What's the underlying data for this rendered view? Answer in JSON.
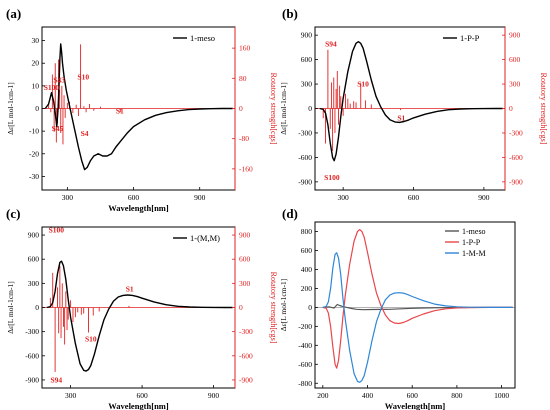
{
  "chart_data": [
    {
      "panel": "(a)",
      "type": "line",
      "legend": "1-meso",
      "legend_position": "top-right",
      "xlabel": "Wavelength[nm]",
      "ylabel": "Δε[L mol-1cm-1]",
      "y2label": "Rotatory strength[cgs]",
      "xlim": [
        185,
        1060
      ],
      "xticks": [
        300,
        600,
        900
      ],
      "ylim": [
        -36,
        36
      ],
      "yticks": [
        -30,
        -20,
        -10,
        0,
        10,
        20,
        30
      ],
      "y2lim": [
        -216,
        216
      ],
      "y2ticks": [
        -160,
        -80,
        0,
        80,
        160
      ],
      "series": [
        {
          "name": "1-meso",
          "color": "#000000",
          "x": [
            200,
            215,
            228,
            238,
            245,
            252,
            258,
            262,
            266,
            270,
            274,
            278,
            285,
            295,
            310,
            330,
            350,
            365,
            378,
            390,
            405,
            420,
            440,
            460,
            480,
            500,
            520,
            545,
            570,
            600,
            650,
            700,
            750,
            800,
            850,
            900,
            950,
            1000,
            1050
          ],
          "y": [
            0,
            2,
            7,
            3,
            -2,
            -8,
            0,
            10,
            22,
            28.5,
            25,
            20,
            14,
            8,
            1,
            -8,
            -17,
            -23,
            -27,
            -26,
            -23,
            -21,
            -20,
            -21,
            -21,
            -20,
            -17,
            -14,
            -11,
            -8,
            -5,
            -3,
            -1.8,
            -1,
            -0.5,
            -0.2,
            -0.1,
            0,
            0
          ]
        }
      ],
      "sticks": {
        "x": [
          215,
          225,
          232,
          240,
          245,
          250,
          255,
          260,
          265,
          270,
          275,
          280,
          285,
          290,
          300,
          310,
          325,
          340,
          350,
          360,
          375,
          385,
          400,
          420,
          450,
          540
        ],
        "y": [
          16,
          -10,
          90,
          -62,
          120,
          -90,
          -40,
          130,
          50,
          -65,
          60,
          -95,
          35,
          -25,
          15,
          18,
          -12,
          10,
          -20,
          170,
          6,
          -10,
          12,
          -6,
          5,
          -10
        ]
      },
      "annotations": [
        {
          "text": "S100",
          "x": 228,
          "y2": 49
        },
        {
          "text": "S43",
          "x": 263,
          "y2": 69
        },
        {
          "text": "S10",
          "x": 372,
          "y2": 77
        },
        {
          "text": "S1",
          "x": 538,
          "y2": -13
        },
        {
          "text": "S45",
          "x": 255,
          "y2": -60
        },
        {
          "text": "S4",
          "x": 378,
          "y2": -73
        }
      ]
    },
    {
      "panel": "(b)",
      "type": "line",
      "legend": "1-P-P",
      "legend_position": "top-right",
      "xlabel": "",
      "ylabel": "Δε[L mol-1cm-1]",
      "y2label": "Rotatory strength[cgs]",
      "xlim": [
        180,
        990
      ],
      "xticks": [
        300,
        600,
        900
      ],
      "ylim": [
        -1000,
        1000
      ],
      "yticks": [
        -900,
        -600,
        -300,
        0,
        300,
        600,
        900
      ],
      "y2lim": [
        -1000,
        1000
      ],
      "y2ticks": [
        -900,
        -600,
        -300,
        0,
        300,
        600,
        900
      ],
      "series": [
        {
          "name": "1-P-P",
          "color": "#000000",
          "x": [
            200,
            215,
            225,
            235,
            245,
            255,
            262,
            270,
            280,
            290,
            300,
            320,
            340,
            355,
            365,
            375,
            385,
            400,
            420,
            440,
            460,
            480,
            500,
            520,
            540,
            560,
            580,
            600,
            650,
            700,
            750,
            800,
            850,
            900,
            950,
            980
          ],
          "y": [
            0,
            -10,
            -60,
            -200,
            -420,
            -600,
            -640,
            -560,
            -350,
            -100,
            120,
            450,
            700,
            800,
            820,
            800,
            740,
            580,
            350,
            150,
            20,
            -80,
            -140,
            -165,
            -170,
            -160,
            -140,
            -115,
            -70,
            -35,
            -15,
            -6,
            -2,
            -1,
            0,
            0
          ]
        }
      ],
      "sticks": {
        "x": [
          215,
          225,
          235,
          245,
          250,
          255,
          260,
          265,
          270,
          275,
          280,
          285,
          290,
          300,
          310,
          320,
          330,
          345,
          355,
          375,
          395,
          420,
          545
        ],
        "y": [
          -120,
          -430,
          720,
          -250,
          320,
          -520,
          380,
          -300,
          240,
          460,
          -200,
          280,
          150,
          -90,
          180,
          120,
          60,
          90,
          75,
          310,
          100,
          50,
          -20
        ]
      },
      "annotations": [
        {
          "text": "S94",
          "x": 248,
          "y2": 760
        },
        {
          "text": "S10",
          "x": 385,
          "y2": 270
        },
        {
          "text": "S1",
          "x": 548,
          "y2": -150
        },
        {
          "text": "S100",
          "x": 252,
          "y2": -880
        }
      ]
    },
    {
      "panel": "(c)",
      "type": "line",
      "legend": "1-(M,M)",
      "legend_position": "top-right",
      "xlabel": "Wavelength[nm]",
      "ylabel": "Δε[L mol-1cm-1]",
      "y2label": "Rotatory strength[cgs]",
      "xlim": [
        180,
        990
      ],
      "xticks": [
        300,
        600,
        900
      ],
      "ylim": [
        -1000,
        1000
      ],
      "yticks": [
        -900,
        -600,
        -300,
        0,
        300,
        600,
        900
      ],
      "y2lim": [
        -1000,
        1000
      ],
      "y2ticks": [
        -900,
        -600,
        -300,
        0,
        300,
        600,
        900
      ],
      "series": [
        {
          "name": "1-(M,M)",
          "color": "#000000",
          "x": [
            200,
            215,
            225,
            235,
            245,
            255,
            262,
            270,
            280,
            290,
            300,
            320,
            340,
            355,
            365,
            375,
            385,
            400,
            420,
            440,
            460,
            480,
            500,
            520,
            540,
            560,
            580,
            600,
            650,
            700,
            750,
            800,
            850,
            900,
            950,
            980
          ],
          "y": [
            0,
            10,
            60,
            200,
            420,
            560,
            575,
            520,
            350,
            100,
            -120,
            -450,
            -700,
            -780,
            -790,
            -770,
            -720,
            -580,
            -350,
            -150,
            -20,
            80,
            130,
            150,
            155,
            150,
            135,
            115,
            70,
            35,
            15,
            6,
            2,
            1,
            0,
            0
          ]
        }
      ],
      "sticks": {
        "x": [
          215,
          225,
          235,
          245,
          250,
          255,
          260,
          265,
          270,
          275,
          280,
          285,
          290,
          300,
          310,
          320,
          330,
          345,
          355,
          375,
          395,
          420,
          545
        ],
        "y": [
          120,
          430,
          -800,
          250,
          -320,
          520,
          -380,
          300,
          -240,
          -460,
          200,
          -280,
          -150,
          90,
          -180,
          -120,
          -60,
          -90,
          -75,
          -310,
          -100,
          -50,
          20
        ]
      },
      "annotations": [
        {
          "text": "S100",
          "x": 240,
          "y2": 930
        },
        {
          "text": "S1",
          "x": 548,
          "y2": 200
        },
        {
          "text": "S10",
          "x": 385,
          "y2": -420
        },
        {
          "text": "S94",
          "x": 240,
          "y2": -930
        }
      ]
    },
    {
      "panel": "(d)",
      "type": "line",
      "legend_position": "top-right",
      "xlabel": "Wavelength[nm]",
      "ylabel": "Δε[L mol-1cm-1]",
      "xlim": [
        165,
        1060
      ],
      "xticks": [
        200,
        400,
        600,
        800,
        1000
      ],
      "ylim": [
        -850,
        900
      ],
      "yticks": [
        -800,
        -600,
        -400,
        -200,
        0,
        200,
        400,
        600,
        800
      ],
      "series": [
        {
          "name": "1-meso",
          "color": "#555555",
          "x": [
            200,
            230,
            250,
            265,
            275,
            290,
            320,
            350,
            380,
            420,
            500,
            600,
            700,
            800,
            900,
            1050
          ],
          "y": [
            0,
            5,
            -8,
            30,
            20,
            8,
            -8,
            -20,
            -25,
            -22,
            -20,
            -10,
            -4,
            -1,
            0,
            0
          ]
        },
        {
          "name": "1-P-P",
          "color": "#e8474b",
          "x": [
            200,
            215,
            225,
            235,
            245,
            255,
            262,
            270,
            280,
            290,
            300,
            320,
            340,
            355,
            365,
            375,
            385,
            400,
            420,
            440,
            460,
            480,
            500,
            520,
            540,
            560,
            580,
            600,
            650,
            700,
            750,
            800,
            850,
            900,
            950,
            1050
          ],
          "y": [
            0,
            -10,
            -60,
            -200,
            -420,
            -600,
            -640,
            -560,
            -350,
            -100,
            120,
            450,
            700,
            800,
            820,
            800,
            740,
            580,
            350,
            150,
            20,
            -80,
            -140,
            -165,
            -170,
            -160,
            -140,
            -115,
            -70,
            -35,
            -15,
            -6,
            -2,
            -1,
            0,
            0
          ]
        },
        {
          "name": "1-M-M",
          "color": "#2f86d6",
          "x": [
            200,
            215,
            225,
            235,
            245,
            255,
            262,
            270,
            280,
            290,
            300,
            320,
            340,
            355,
            365,
            375,
            385,
            400,
            420,
            440,
            460,
            480,
            500,
            520,
            540,
            560,
            580,
            600,
            650,
            700,
            750,
            800,
            850,
            900,
            950,
            1050
          ],
          "y": [
            0,
            10,
            60,
            200,
            420,
            560,
            575,
            520,
            350,
            100,
            -120,
            -450,
            -700,
            -780,
            -790,
            -770,
            -720,
            -580,
            -350,
            -150,
            -20,
            80,
            130,
            150,
            155,
            150,
            135,
            115,
            70,
            35,
            15,
            6,
            2,
            1,
            0,
            0
          ]
        }
      ]
    }
  ]
}
